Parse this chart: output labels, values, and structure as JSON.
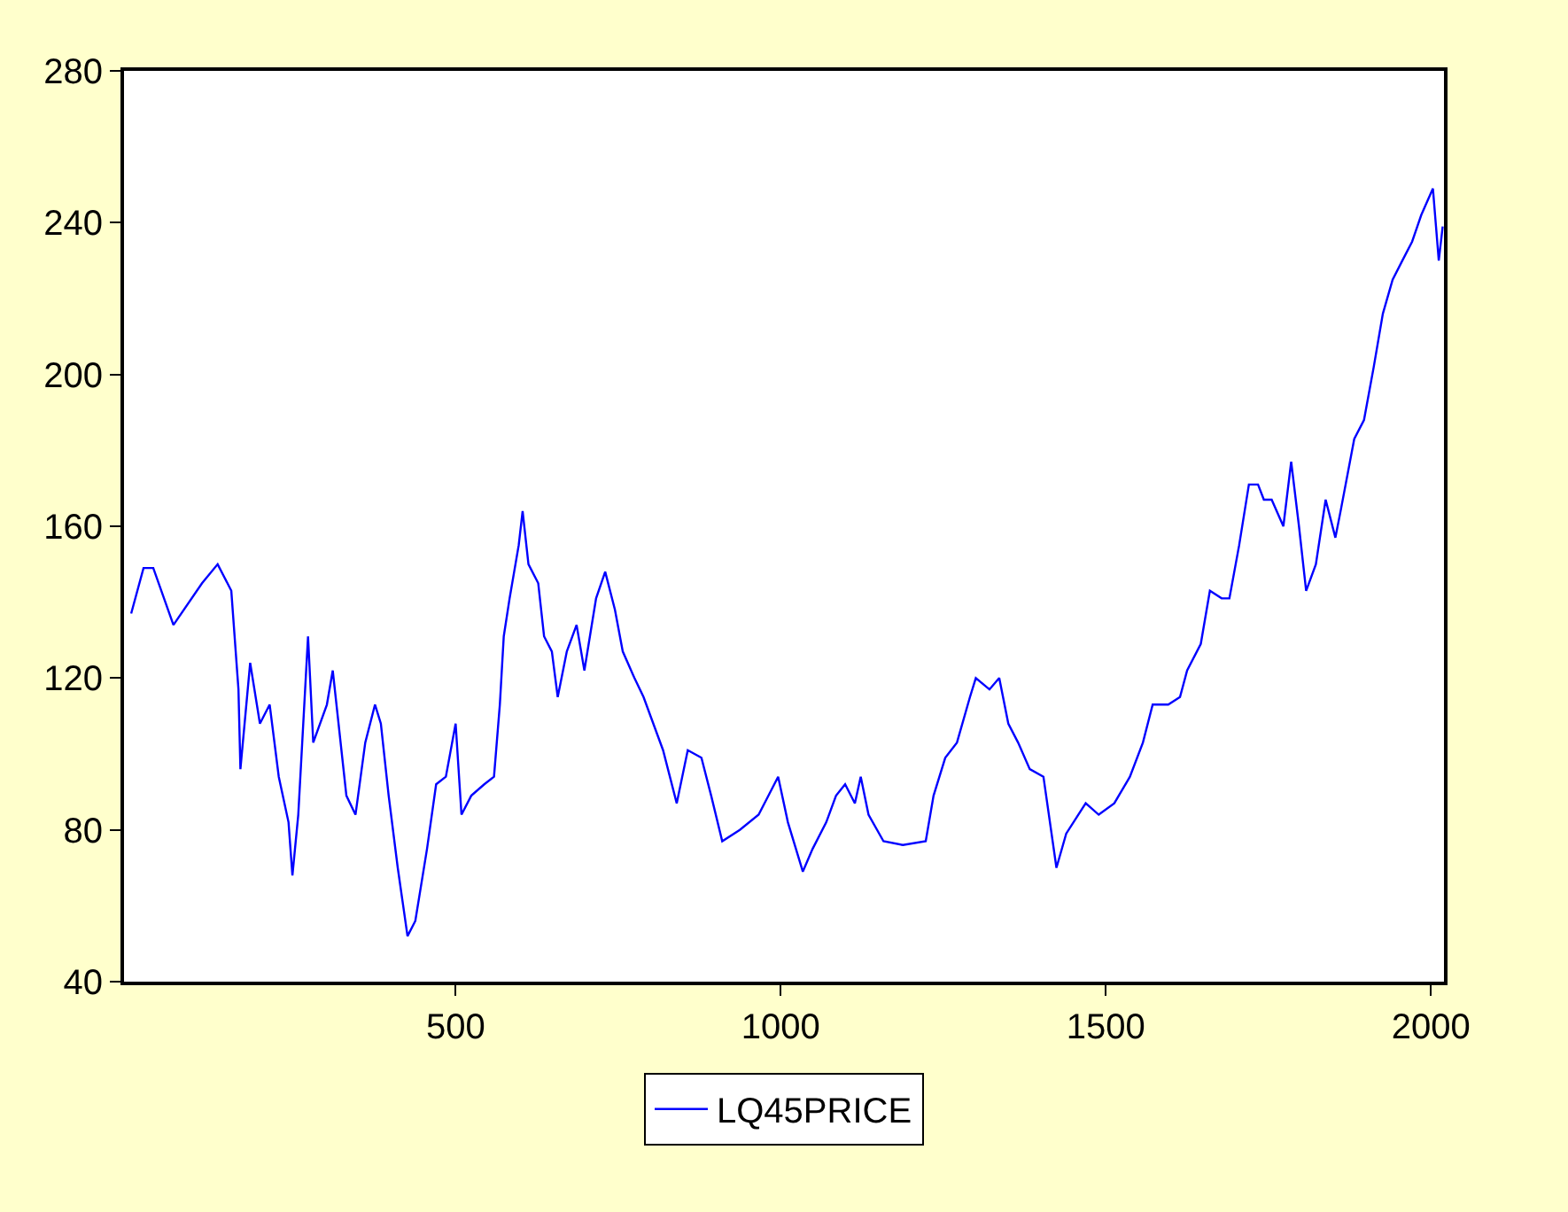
{
  "chart_data": {
    "type": "line",
    "xlim": [
      -10,
      2020
    ],
    "xticks": [
      500,
      1000,
      1500,
      2000
    ],
    "ylim": [
      40,
      280
    ],
    "yticks": [
      40,
      80,
      120,
      160,
      200,
      240,
      280
    ],
    "legend": "bottom",
    "marker": "none",
    "line_style": "solid",
    "series": [
      {
        "name": "LQ45PRICE",
        "color": "#0000ff",
        "x": [
          1,
          20,
          35,
          66,
          110,
          134,
          155,
          166,
          169,
          184,
          199,
          214,
          228,
          243,
          249,
          258,
          273,
          281,
          302,
          311,
          332,
          346,
          361,
          376,
          385,
          397,
          411,
          426,
          438,
          456,
          470,
          485,
          500,
          509,
          524,
          544,
          559,
          568,
          574,
          583,
          597,
          603,
          612,
          627,
          636,
          648,
          657,
          671,
          686,
          698,
          716,
          730,
          745,
          757,
          775,
          789,
          804,
          819,
          840,
          857,
          878,
          893,
          910,
          937,
          966,
          996,
          1011,
          1034,
          1049,
          1070,
          1085,
          1099,
          1114,
          1123,
          1135,
          1158,
          1188,
          1223,
          1235,
          1253,
          1271,
          1291,
          1300,
          1321,
          1336,
          1350,
          1365,
          1383,
          1404,
          1424,
          1439,
          1469,
          1489,
          1513,
          1537,
          1557,
          1572,
          1596,
          1614,
          1625,
          1646,
          1660,
          1678,
          1690,
          1705,
          1720,
          1734,
          1743,
          1755,
          1773,
          1785,
          1797,
          1808,
          1823,
          1838,
          1853,
          1861,
          1882,
          1897,
          1912,
          1926,
          1941,
          1956,
          1971,
          1985,
          2003,
          2012,
          2018
        ],
        "values": [
          137,
          149,
          149,
          134,
          145,
          150,
          143,
          117,
          96,
          124,
          108,
          113,
          94,
          82,
          68,
          84,
          131,
          103,
          113,
          122,
          89,
          84,
          103,
          113,
          108,
          89,
          70,
          52,
          56,
          75,
          92,
          94,
          108,
          84,
          89,
          92,
          94,
          113,
          131,
          141,
          155,
          164,
          150,
          145,
          131,
          127,
          115,
          127,
          134,
          122,
          141,
          148,
          138,
          127,
          120,
          115,
          108,
          101,
          87,
          101,
          99,
          89,
          77,
          80,
          84,
          94,
          82,
          69,
          75,
          82,
          89,
          92,
          87,
          94,
          84,
          77,
          76,
          77,
          89,
          99,
          103,
          115,
          120,
          117,
          120,
          108,
          103,
          96,
          94,
          70,
          79,
          87,
          84,
          87,
          94,
          103,
          113,
          113,
          115,
          122,
          129,
          143,
          141,
          141,
          155,
          171,
          171,
          167,
          167,
          160,
          177,
          160,
          143,
          150,
          167,
          157,
          164,
          183,
          188,
          202,
          216,
          225,
          230,
          235,
          242,
          249,
          230,
          239
        ]
      }
    ]
  }
}
